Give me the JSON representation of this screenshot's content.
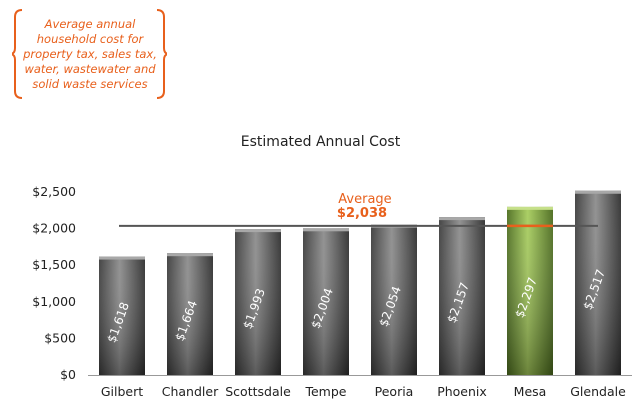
{
  "callout": {
    "lines": [
      "Average annual",
      "household cost for",
      "property tax, sales tax,",
      "water, wastewater and",
      "solid waste services"
    ]
  },
  "chart_data": {
    "type": "bar",
    "title": "Estimated Annual Cost",
    "xlabel": "",
    "ylabel": "",
    "categories": [
      "Gilbert",
      "Chandler",
      "Scottsdale",
      "Tempe",
      "Peoria",
      "Phoenix",
      "Mesa",
      "Glendale"
    ],
    "values": [
      1618,
      1664,
      1993,
      2004,
      2054,
      2157,
      2297,
      2517
    ],
    "value_labels": [
      "$1,618",
      "$1,664",
      "$1,993",
      "$2,004",
      "$2,054",
      "$2,157",
      "$2,297",
      "$2,517"
    ],
    "highlight": "Mesa",
    "ylim": [
      0,
      2500
    ],
    "yticks": [
      0,
      500,
      1000,
      1500,
      2000,
      2500
    ],
    "ytick_labels": [
      "$0",
      "$500",
      "$1,000",
      "$1,500",
      "$2,000",
      "$2,500"
    ],
    "average": {
      "value": 2038,
      "label": "Average",
      "value_label": "$2,038"
    },
    "grid": false,
    "colors": {
      "bar": "#6b6b6b",
      "highlight_bar": "#7aa03c",
      "average_line": "#555555",
      "average_text": "#e8601c",
      "average_marker": "#e8601c"
    }
  }
}
